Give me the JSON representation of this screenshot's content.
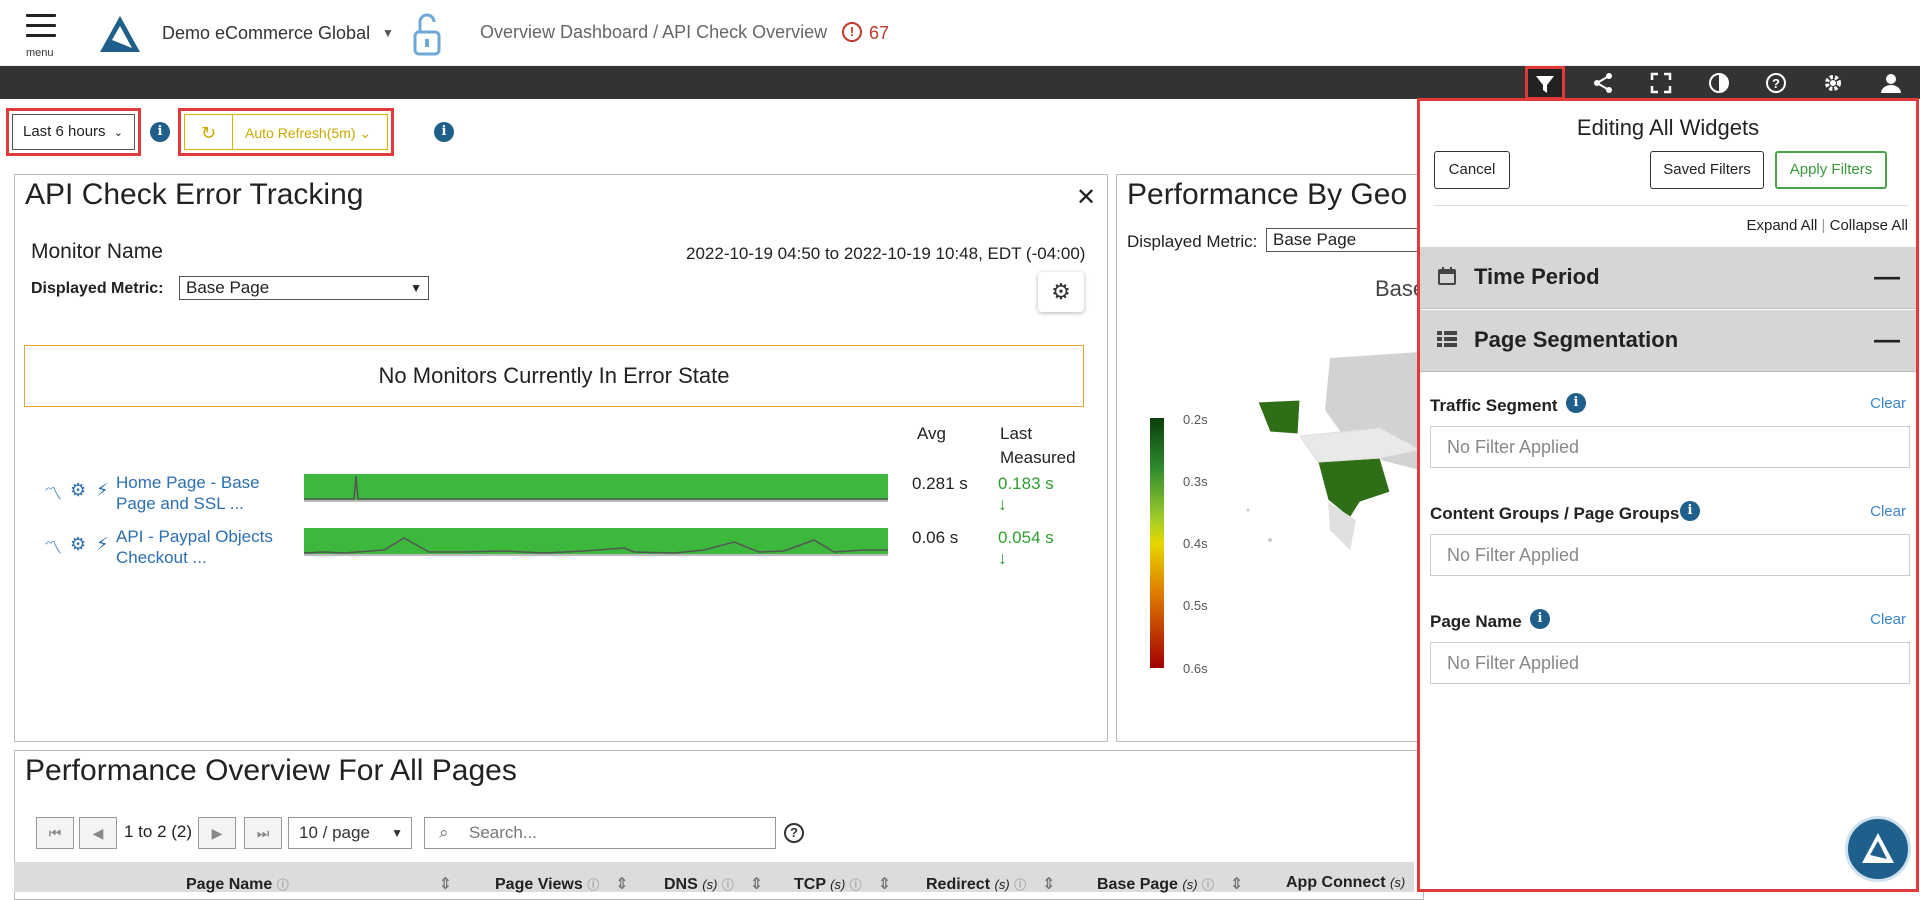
{
  "header": {
    "menu_label": "menu",
    "account_name": "Demo eCommerce Global",
    "breadcrumb": "Overview Dashboard / API Check Overview",
    "alert_count": "67"
  },
  "toolbar": {
    "icons": [
      "filter-icon",
      "share-icon",
      "fullscreen-icon",
      "contrast-icon",
      "help-icon",
      "settings-icon",
      "user-icon"
    ]
  },
  "controls": {
    "time_range": "Last 6 hours",
    "auto_refresh": "Auto Refresh(5m)"
  },
  "api_panel": {
    "title": "API Check Error Tracking",
    "monitor_heading": "Monitor Name",
    "metric_label": "Displayed Metric:",
    "metric_value": "Base Page",
    "date_range": "2022-10-19 04:50 to 2022-10-19 10:48, EDT (-04:00)",
    "no_error_msg": "No Monitors Currently In Error State",
    "col_avg": "Avg",
    "col_last_1": "Last",
    "col_last_2": "Measured",
    "monitors": [
      {
        "name_1": "Home Page - Base",
        "name_2": "Page and SSL ...",
        "avg": "0.281 s",
        "last": "0.183 s"
      },
      {
        "name_1": "API - Paypal Objects",
        "name_2": "Checkout ...",
        "avg": "0.06 s",
        "last": "0.054 s"
      }
    ]
  },
  "geo_panel": {
    "title": "Performance By Geo",
    "metric_label": "Displayed Metric:",
    "metric_value": "Base Page",
    "map_title_fragment": "Base",
    "legend": [
      "0.2s",
      "0.3s",
      "0.4s",
      "0.5s",
      "0.6s"
    ]
  },
  "overview_panel": {
    "title": "Performance Overview For All Pages",
    "pager_info": "1 to 2 (2)",
    "per_page": "10 / page",
    "search_placeholder": "Search...",
    "columns": [
      {
        "label": "Page Name",
        "unit": ""
      },
      {
        "label": "Page Views",
        "unit": ""
      },
      {
        "label": "DNS",
        "unit": "(s)"
      },
      {
        "label": "TCP",
        "unit": "(s)"
      },
      {
        "label": "Redirect",
        "unit": "(s)"
      },
      {
        "label": "Base Page",
        "unit": "(s)"
      },
      {
        "label": "App Connect",
        "unit": "(s)"
      }
    ]
  },
  "filter_panel": {
    "title": "Editing All Widgets",
    "cancel": "Cancel",
    "saved_filters": "Saved Filters",
    "apply_filters": "Apply Filters",
    "expand_all": "Expand All",
    "collapse_all": "Collapse All",
    "separator": "|",
    "sections": [
      {
        "title": "Time Period"
      },
      {
        "title": "Page Segmentation"
      }
    ],
    "fields": [
      {
        "label": "Traffic Segment",
        "clear": "Clear",
        "value": "No Filter Applied"
      },
      {
        "label": "Content Groups / Page Groups",
        "clear": "Clear",
        "value": "No Filter Applied"
      },
      {
        "label": "Page Name",
        "clear": "Clear",
        "value": "No Filter Applied"
      }
    ]
  },
  "colors": {
    "accent_red": "#e03a3a",
    "link_blue": "#2c6fb0",
    "ok_green": "#2e9e2e",
    "brand_blue": "#1f5f8b"
  }
}
